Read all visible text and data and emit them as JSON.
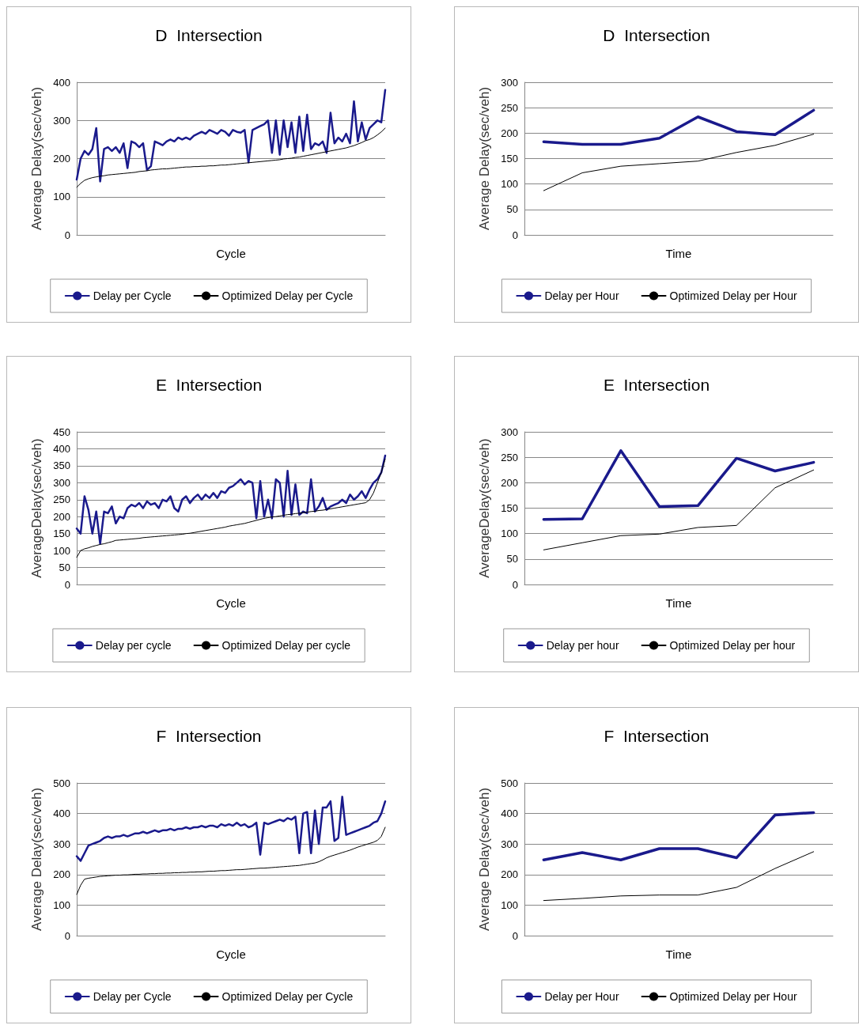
{
  "chart_data": [
    {
      "type": "line",
      "title": "D  Intersection",
      "xlabel": "Cycle",
      "ylabel": "Average Delay(sec/veh)",
      "ylim": [
        0,
        400
      ],
      "yticks": [
        0,
        100,
        200,
        300,
        400
      ],
      "grid": "y",
      "legend": "bottom",
      "marker": "none",
      "line_style": "solid",
      "categories": [
        null,
        null,
        null,
        null,
        null,
        null,
        null,
        null,
        null,
        null,
        null,
        null,
        null,
        null,
        null,
        null,
        null,
        null,
        null,
        null,
        null,
        null,
        null,
        null,
        null,
        null,
        null,
        null,
        null,
        null,
        null,
        null,
        null,
        null,
        null,
        null,
        null,
        null,
        null,
        null,
        null,
        null,
        null,
        null,
        null,
        null,
        null,
        null,
        null,
        null,
        null,
        null,
        null,
        null,
        null,
        null,
        null,
        null,
        null,
        null,
        null,
        null,
        null,
        null,
        null,
        null,
        null,
        null,
        null,
        null,
        null,
        null,
        null,
        null,
        null,
        null,
        null,
        null,
        null,
        null
      ],
      "series": [
        {
          "name": "Delay per Cycle",
          "color": "#1a1a8c",
          "values": [
            145,
            200,
            220,
            210,
            225,
            280,
            140,
            225,
            230,
            220,
            230,
            215,
            240,
            175,
            245,
            240,
            230,
            240,
            170,
            180,
            245,
            240,
            235,
            245,
            250,
            245,
            255,
            250,
            255,
            250,
            260,
            265,
            270,
            265,
            275,
            270,
            265,
            275,
            270,
            260,
            275,
            270,
            268,
            275,
            190,
            275,
            280,
            285,
            290,
            300,
            215,
            300,
            210,
            300,
            230,
            295,
            215,
            310,
            220,
            315,
            225,
            240,
            235,
            245,
            215,
            320,
            240,
            255,
            245,
            265,
            240,
            350,
            245,
            295,
            250,
            280,
            290,
            300,
            295,
            380
          ]
        },
        {
          "name": "Optimized Delay per Cycle",
          "color": "#000000",
          "values": [
            125,
            135,
            143,
            147,
            150,
            152,
            154,
            155,
            157,
            158,
            159,
            160,
            161,
            162,
            163,
            164,
            166,
            167,
            168,
            170,
            171,
            172,
            173,
            173,
            174,
            175,
            176,
            177,
            178,
            178,
            179,
            179,
            180,
            180,
            181,
            181,
            182,
            183,
            183,
            184,
            185,
            186,
            187,
            188,
            189,
            190,
            191,
            192,
            193,
            194,
            195,
            196,
            197,
            199,
            200,
            201,
            203,
            204,
            206,
            208,
            210,
            212,
            214,
            216,
            218,
            220,
            222,
            224,
            226,
            228,
            231,
            234,
            238,
            242,
            247,
            250,
            255,
            262,
            270,
            280
          ]
        }
      ]
    },
    {
      "type": "line",
      "title": "D  Intersection",
      "xlabel": "Time",
      "ylabel": "Average Delay(sec/veh)",
      "ylim": [
        0,
        300
      ],
      "yticks": [
        0,
        50,
        100,
        150,
        200,
        250,
        300
      ],
      "grid": "y",
      "legend": "bottom",
      "marker": "none",
      "line_style": "solid",
      "categories": [
        null,
        null,
        null,
        null,
        null,
        null,
        null,
        null
      ],
      "series": [
        {
          "name": "Delay per Hour",
          "color": "#1a1a8c",
          "values": [
            183,
            178,
            178,
            190,
            232,
            203,
            197,
            245
          ]
        },
        {
          "name": "Optimized Delay per Hour",
          "color": "#000000",
          "values": [
            87,
            122,
            135,
            140,
            145,
            162,
            176,
            198
          ]
        }
      ]
    },
    {
      "type": "line",
      "title": "E  Intersection",
      "xlabel": "Cycle",
      "ylabel": "AverageDelay(sec/veh)",
      "ylim": [
        0,
        450
      ],
      "yticks": [
        0,
        50,
        100,
        150,
        200,
        250,
        300,
        350,
        400,
        450
      ],
      "grid": "y",
      "legend": "bottom",
      "marker": "none",
      "line_style": "solid",
      "categories": [
        null,
        null,
        null,
        null,
        null,
        null,
        null,
        null,
        null,
        null,
        null,
        null,
        null,
        null,
        null,
        null,
        null,
        null,
        null,
        null,
        null,
        null,
        null,
        null,
        null,
        null,
        null,
        null,
        null,
        null,
        null,
        null,
        null,
        null,
        null,
        null,
        null,
        null,
        null,
        null,
        null,
        null,
        null,
        null,
        null,
        null,
        null,
        null,
        null,
        null,
        null,
        null,
        null,
        null,
        null,
        null,
        null,
        null,
        null,
        null,
        null,
        null,
        null,
        null,
        null,
        null,
        null,
        null,
        null,
        null,
        null,
        null,
        null,
        null,
        null,
        null,
        null,
        null,
        null,
        null
      ],
      "series": [
        {
          "name": "Delay per cycle",
          "color": "#1a1a8c",
          "values": [
            165,
            150,
            260,
            220,
            150,
            215,
            120,
            215,
            210,
            230,
            180,
            200,
            195,
            225,
            235,
            230,
            240,
            225,
            245,
            235,
            240,
            225,
            250,
            245,
            260,
            225,
            215,
            250,
            260,
            240,
            255,
            265,
            250,
            265,
            255,
            270,
            255,
            275,
            270,
            285,
            290,
            300,
            310,
            295,
            305,
            300,
            195,
            305,
            200,
            250,
            195,
            310,
            300,
            200,
            335,
            205,
            295,
            205,
            215,
            210,
            310,
            215,
            230,
            255,
            220,
            230,
            235,
            240,
            250,
            240,
            265,
            250,
            260,
            275,
            255,
            280,
            300,
            310,
            330,
            380
          ]
        },
        {
          "name": "Optimized Delay per cycle",
          "color": "#000000",
          "values": [
            80,
            100,
            105,
            108,
            112,
            115,
            118,
            120,
            123,
            126,
            130,
            131,
            132,
            133,
            134,
            135,
            136,
            138,
            139,
            140,
            141,
            142,
            143,
            144,
            145,
            146,
            147,
            148,
            150,
            151,
            153,
            155,
            157,
            159,
            161,
            163,
            165,
            167,
            169,
            172,
            174,
            176,
            178,
            180,
            183,
            186,
            189,
            192,
            195,
            197,
            199,
            200,
            202,
            204,
            206,
            207,
            209,
            210,
            212,
            213,
            215,
            216,
            218,
            219,
            221,
            223,
            225,
            227,
            229,
            231,
            233,
            235,
            237,
            239,
            241,
            250,
            270,
            300,
            330,
            370
          ]
        }
      ]
    },
    {
      "type": "line",
      "title": "E  Intersection",
      "xlabel": "Time",
      "ylabel": "AverageDelay(sec/veh)",
      "ylim": [
        0,
        300
      ],
      "yticks": [
        0,
        50,
        100,
        150,
        200,
        250,
        300
      ],
      "grid": "y",
      "legend": "bottom",
      "marker": "none",
      "line_style": "solid",
      "categories": [
        null,
        null,
        null,
        null,
        null,
        null,
        null,
        null
      ],
      "series": [
        {
          "name": "Delay per hour",
          "color": "#1a1a8c",
          "values": [
            128,
            129,
            263,
            153,
            155,
            248,
            223,
            240
          ]
        },
        {
          "name": "Optimized Delay per hour",
          "color": "#000000",
          "values": [
            68,
            82,
            96,
            99,
            112,
            116,
            190,
            225
          ]
        }
      ]
    },
    {
      "type": "line",
      "title": "F  Intersection",
      "xlabel": "Cycle",
      "ylabel": "Average Delay(sec/veh)",
      "ylim": [
        0,
        500
      ],
      "yticks": [
        0,
        100,
        200,
        300,
        400,
        500
      ],
      "grid": "y",
      "legend": "bottom",
      "marker": "none",
      "line_style": "solid",
      "categories": [
        null,
        null,
        null,
        null,
        null,
        null,
        null,
        null,
        null,
        null,
        null,
        null,
        null,
        null,
        null,
        null,
        null,
        null,
        null,
        null,
        null,
        null,
        null,
        null,
        null,
        null,
        null,
        null,
        null,
        null,
        null,
        null,
        null,
        null,
        null,
        null,
        null,
        null,
        null,
        null,
        null,
        null,
        null,
        null,
        null,
        null,
        null,
        null,
        null,
        null,
        null,
        null,
        null,
        null,
        null,
        null,
        null,
        null,
        null,
        null,
        null,
        null,
        null,
        null,
        null,
        null,
        null,
        null,
        null,
        null,
        null,
        null,
        null,
        null,
        null,
        null,
        null,
        null,
        null,
        null
      ],
      "series": [
        {
          "name": "Delay per Cycle",
          "color": "#1a1a8c",
          "values": [
            260,
            245,
            270,
            295,
            300,
            305,
            310,
            320,
            325,
            320,
            325,
            325,
            330,
            325,
            330,
            335,
            335,
            340,
            335,
            340,
            345,
            340,
            345,
            345,
            350,
            345,
            350,
            350,
            355,
            350,
            355,
            355,
            360,
            355,
            360,
            360,
            355,
            365,
            360,
            365,
            360,
            370,
            360,
            365,
            355,
            360,
            370,
            265,
            370,
            365,
            370,
            375,
            380,
            375,
            385,
            380,
            390,
            270,
            400,
            405,
            270,
            410,
            300,
            420,
            420,
            440,
            310,
            320,
            455,
            330,
            335,
            340,
            345,
            350,
            355,
            360,
            370,
            375,
            400,
            440
          ]
        },
        {
          "name": "Optimized Delay per Cycle",
          "color": "#000000",
          "values": [
            135,
            165,
            185,
            188,
            190,
            192,
            194,
            195,
            196,
            197,
            198,
            198,
            199,
            199,
            200,
            201,
            201,
            202,
            202,
            203,
            203,
            204,
            204,
            205,
            205,
            206,
            206,
            207,
            207,
            208,
            208,
            209,
            209,
            210,
            211,
            211,
            212,
            213,
            213,
            214,
            215,
            216,
            216,
            217,
            218,
            219,
            220,
            221,
            221,
            222,
            223,
            224,
            225,
            226,
            227,
            228,
            229,
            230,
            232,
            234,
            236,
            238,
            242,
            248,
            255,
            260,
            264,
            268,
            272,
            276,
            280,
            285,
            290,
            294,
            298,
            302,
            306,
            312,
            325,
            355
          ]
        }
      ]
    },
    {
      "type": "line",
      "title": "F  Intersection",
      "xlabel": "Time",
      "ylabel": "Average Delay(sec/veh)",
      "ylim": [
        0,
        500
      ],
      "yticks": [
        0,
        100,
        200,
        300,
        400,
        500
      ],
      "grid": "y",
      "legend": "bottom",
      "marker": "none",
      "line_style": "solid",
      "categories": [
        null,
        null,
        null,
        null,
        null,
        null,
        null,
        null
      ],
      "series": [
        {
          "name": "Delay per Hour",
          "color": "#1a1a8c",
          "values": [
            248,
            272,
            248,
            285,
            285,
            255,
            395,
            403
          ]
        },
        {
          "name": "Optimized Delay per Hour",
          "color": "#000000",
          "values": [
            115,
            122,
            130,
            133,
            133,
            158,
            220,
            275
          ]
        }
      ]
    }
  ]
}
